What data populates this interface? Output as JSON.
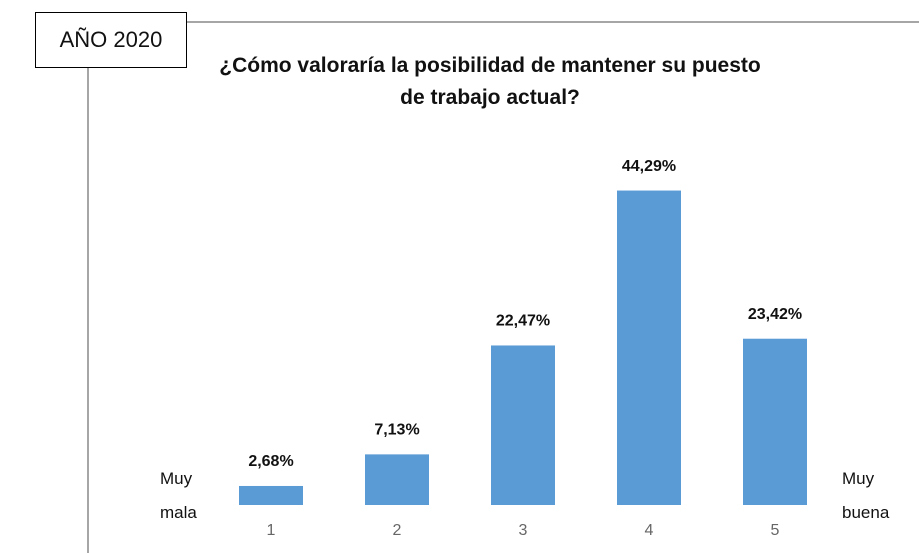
{
  "chart_data": {
    "type": "bar",
    "title": "¿Cómo valoraría la posibilidad de mantener su puesto\nde trabajo actual?",
    "annotations": [
      "AÑO 2020",
      "Muy\nmala",
      "Muy\nbuena"
    ],
    "categories": [
      "1",
      "2",
      "3",
      "4",
      "5"
    ],
    "values": [
      2.68,
      7.13,
      22.47,
      44.29,
      23.42
    ],
    "value_labels": [
      "2,68%",
      "7,13%",
      "22,47%",
      "44,29%",
      "23,42%"
    ],
    "color": "#5b9bd5",
    "ylim": [
      0,
      50
    ]
  }
}
